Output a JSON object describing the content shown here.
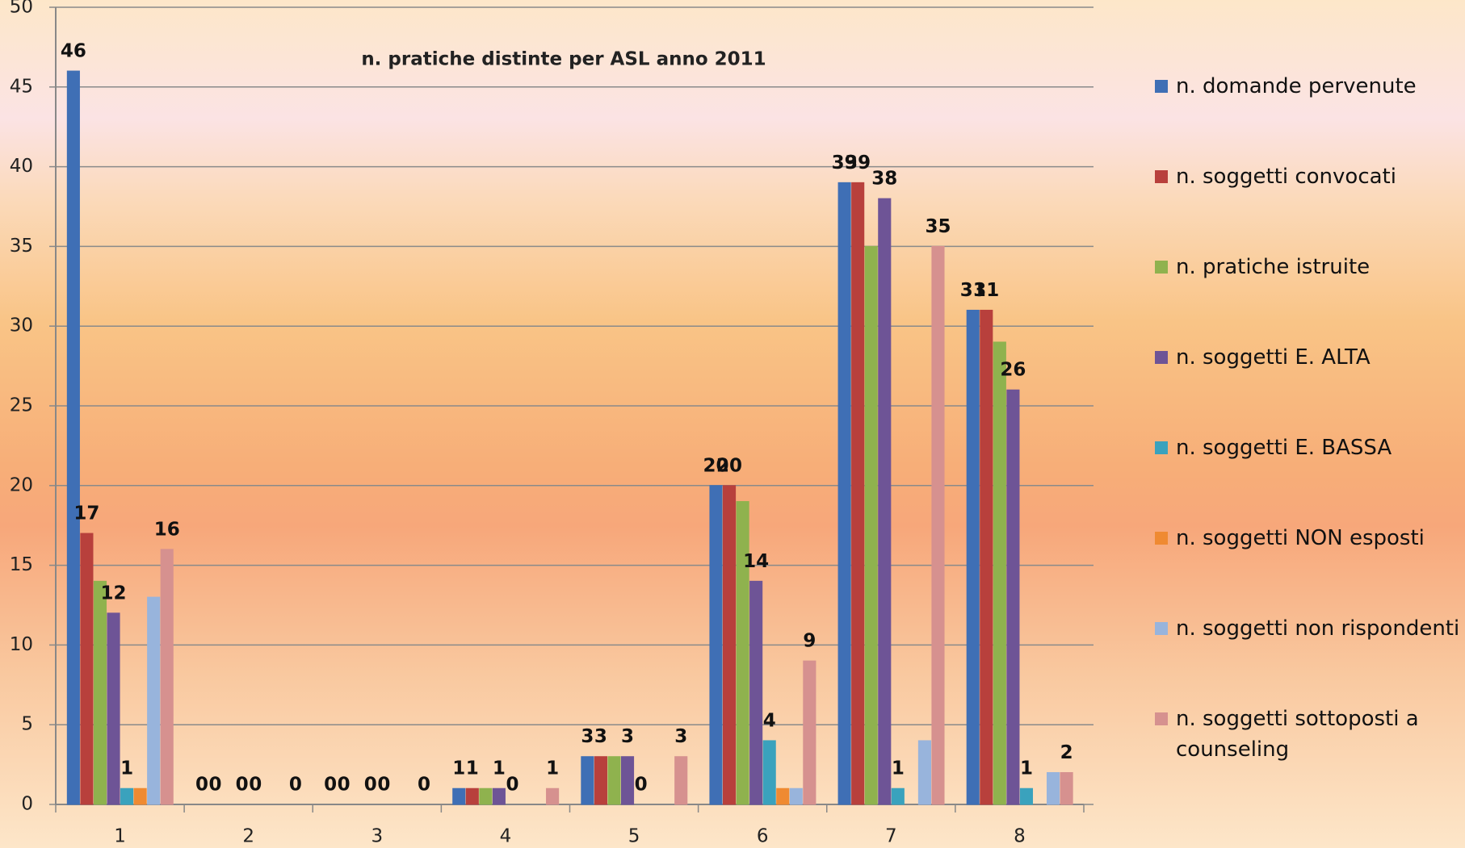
{
  "chart_data": {
    "type": "bar",
    "title": "n. pratiche distinte per ASL anno 2011",
    "categories": [
      "1",
      "2",
      "3",
      "4",
      "5",
      "6",
      "7",
      "8"
    ],
    "series": [
      {
        "name": "n. domande pervenute",
        "color": "#3f6fb5",
        "values": [
          46,
          0,
          0,
          1,
          3,
          20,
          39,
          31
        ],
        "labels": true
      },
      {
        "name": "n. soggetti convocati",
        "color": "#b8403c",
        "values": [
          17,
          0,
          0,
          1,
          3,
          20,
          39,
          31
        ],
        "labels": true
      },
      {
        "name": "n. pratiche istruite",
        "color": "#8fb24e",
        "values": [
          14,
          0,
          0,
          1,
          3,
          19,
          35,
          29
        ],
        "labels": false
      },
      {
        "name": "n. soggetti E.  ALTA",
        "color": "#6e5496",
        "values": [
          12,
          0,
          0,
          1,
          3,
          14,
          38,
          26
        ],
        "labels": true
      },
      {
        "name": "n. soggetti E. BASSA",
        "color": "#3aa2bd",
        "values": [
          1,
          0,
          0,
          0,
          0,
          4,
          1,
          1
        ],
        "labels": true
      },
      {
        "name": "n. soggetti NON esposti",
        "color": "#ef8a32",
        "values": [
          1,
          0,
          0,
          0,
          0,
          1,
          0,
          0
        ],
        "labels": false
      },
      {
        "name": "n. soggetti non rispondenti",
        "color": "#98b4dc",
        "values": [
          13,
          0,
          0,
          0,
          0,
          1,
          4,
          2
        ],
        "labels": false
      },
      {
        "name": "n. soggetti sottoposti a counseling",
        "color": "#d6918f",
        "values": [
          16,
          0,
          0,
          1,
          3,
          9,
          35,
          2
        ],
        "labels": true
      }
    ],
    "ylim": [
      0,
      50
    ],
    "yticks": [
      0,
      5,
      10,
      15,
      20,
      25,
      30,
      35,
      40,
      45,
      50
    ],
    "grid": true,
    "legend": "right"
  }
}
